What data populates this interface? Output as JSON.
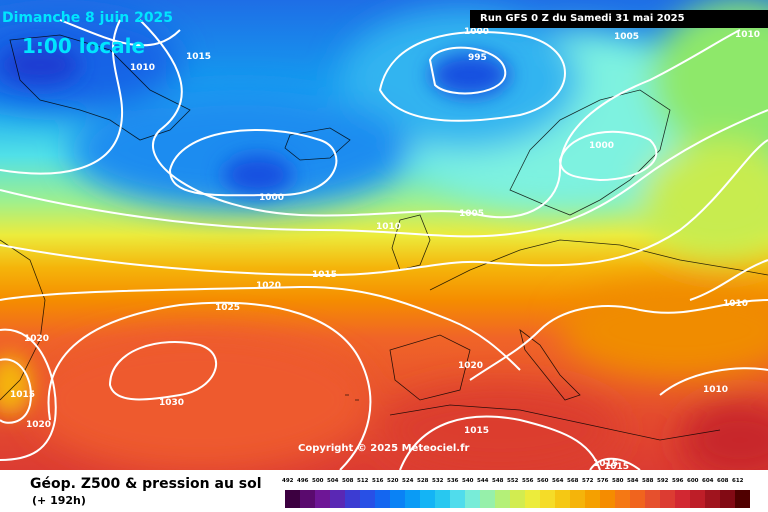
{
  "header": {
    "date": "Dimanche 8 juin 2025",
    "local_time": "1:00 locale",
    "run": "Run GFS 0 Z du Samedi 31 mai 2025"
  },
  "copyright": "Copyright © 2025 Meteociel.fr",
  "footer": {
    "title": "Géop. Z500 & pression au sol",
    "lead_time": "(+ 192h)"
  },
  "legend": {
    "labels": [
      "492",
      "496",
      "500",
      "504",
      "508",
      "512",
      "516",
      "520",
      "524",
      "528",
      "532",
      "536",
      "540",
      "544",
      "548",
      "552",
      "556",
      "560",
      "564",
      "568",
      "572",
      "576",
      "580",
      "584",
      "588",
      "592",
      "596",
      "600",
      "604",
      "608",
      "612"
    ],
    "colors": [
      "#3c0040",
      "#5a0a6e",
      "#6e1696",
      "#5a28b4",
      "#3c3cd2",
      "#2850e6",
      "#1466f0",
      "#0a82f5",
      "#0a9bf5",
      "#14b4f5",
      "#28c8f0",
      "#50dcec",
      "#78ecd8",
      "#96f0aa",
      "#b4f078",
      "#d2ec50",
      "#ecec3c",
      "#f5dc28",
      "#f5c814",
      "#f5b40a",
      "#f5a000",
      "#f58c00",
      "#f57814",
      "#f0641e",
      "#e6502d",
      "#dc3c32",
      "#d22832",
      "#be1e28",
      "#a0141e",
      "#820a14",
      "#500000"
    ]
  },
  "isobars": [
    {
      "value": "1015",
      "where": "Greenland"
    },
    {
      "value": "1010",
      "where": "Greenland west"
    },
    {
      "value": "995",
      "where": "Norwegian Sea low"
    },
    {
      "value": "1000",
      "where": "north"
    },
    {
      "value": "1005",
      "where": "top right"
    },
    {
      "value": "1010",
      "where": "top right corner"
    },
    {
      "value": "1000",
      "where": "Iceland low"
    },
    {
      "value": "1000",
      "where": "Scandinavia"
    },
    {
      "value": "1010",
      "where": "North Sea"
    },
    {
      "value": "1005",
      "where": "North Sea east"
    },
    {
      "value": "1015",
      "where": "mid Atlantic"
    },
    {
      "value": "1020",
      "where": "Atlantic"
    },
    {
      "value": "1025",
      "where": "Azores north"
    },
    {
      "value": "1030",
      "where": "Azores high"
    },
    {
      "value": "1020",
      "where": "west edge"
    },
    {
      "value": "1015",
      "where": "west low"
    },
    {
      "value": "1020",
      "where": "west edge south"
    },
    {
      "value": "1020",
      "where": "Spain"
    },
    {
      "value": "1010",
      "where": "Eastern Europe"
    },
    {
      "value": "1010",
      "where": "Black Sea"
    },
    {
      "value": "1015",
      "where": "North Africa"
    },
    {
      "value": "1015",
      "where": "bottom"
    },
    {
      "value": "1015",
      "where": "bottom center"
    }
  ]
}
